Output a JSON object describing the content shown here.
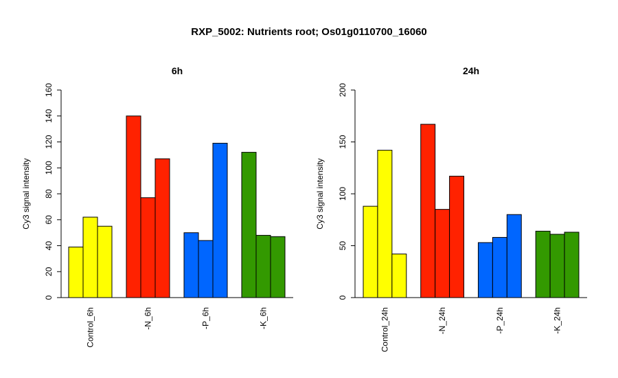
{
  "title": "RXP_5002: Nutrients root; Os01g0110700_16060",
  "colors": {
    "Control": "#ffff00",
    "N": "#ff2200",
    "P": "#0066ff",
    "K": "#339900"
  },
  "chart_data": [
    {
      "type": "bar",
      "title": "6h",
      "ylabel": "Cy3 signal intensity",
      "ylim": [
        0,
        160
      ],
      "yticks": [
        0,
        20,
        40,
        60,
        80,
        100,
        120,
        140,
        160
      ],
      "categories": [
        "Control_6h",
        "-N_6h",
        "-P_6h",
        "-K_6h"
      ],
      "group_colors": [
        "#ffff00",
        "#ff2200",
        "#0066ff",
        "#339900"
      ],
      "values": [
        [
          39,
          62,
          55
        ],
        [
          140,
          77,
          107
        ],
        [
          50,
          44,
          119
        ],
        [
          112,
          48,
          47
        ]
      ]
    },
    {
      "type": "bar",
      "title": "24h",
      "ylabel": "Cy3 signal intensity",
      "ylim": [
        0,
        200
      ],
      "yticks": [
        0,
        50,
        100,
        150,
        200
      ],
      "categories": [
        "Control_24h",
        "-N_24h",
        "-P_24h",
        "-K_24h"
      ],
      "group_colors": [
        "#ffff00",
        "#ff2200",
        "#0066ff",
        "#339900"
      ],
      "values": [
        [
          88,
          142,
          42
        ],
        [
          167,
          85,
          117
        ],
        [
          53,
          58,
          80
        ],
        [
          64,
          61,
          63
        ]
      ]
    }
  ]
}
